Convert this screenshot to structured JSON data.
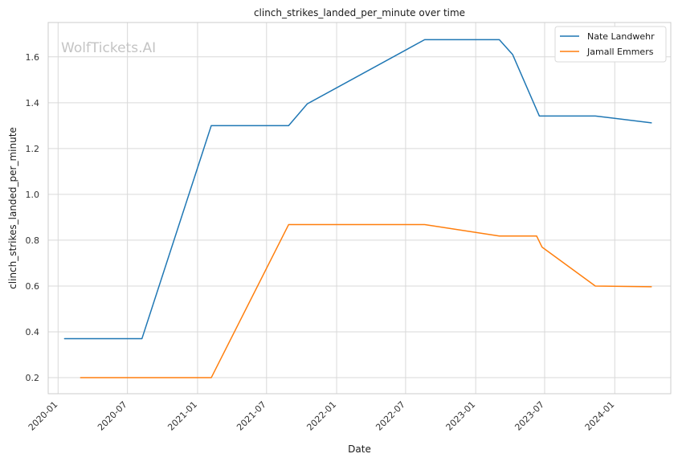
{
  "chart_data": {
    "type": "line",
    "title": "clinch_strikes_landed_per_minute over time",
    "xlabel": "Date",
    "ylabel": "clinch_strikes_landed_per_minute",
    "watermark": "WolfTickets.AI",
    "x_ticks": [
      "2020-01",
      "2020-07",
      "2021-01",
      "2021-07",
      "2022-01",
      "2022-07",
      "2023-01",
      "2023-07",
      "2024-01"
    ],
    "y_ticks": [
      0.2,
      0.4,
      0.6,
      0.8,
      1.0,
      1.2,
      1.4,
      1.6
    ],
    "ylim": [
      0.13,
      1.75
    ],
    "xlim": [
      "2019-12-06",
      "2024-05-27"
    ],
    "grid": true,
    "legend_position": "top-right",
    "series": [
      {
        "name": "Nate Landwehr",
        "color": "#1f77b4",
        "points": [
          {
            "x": "2020-01-18",
            "y": 0.37
          },
          {
            "x": "2020-08-08",
            "y": 0.37
          },
          {
            "x": "2021-02-06",
            "y": 1.3
          },
          {
            "x": "2021-08-28",
            "y": 1.3
          },
          {
            "x": "2021-10-16",
            "y": 1.395
          },
          {
            "x": "2022-08-20",
            "y": 1.675
          },
          {
            "x": "2023-03-04",
            "y": 1.675
          },
          {
            "x": "2023-04-08",
            "y": 1.61
          },
          {
            "x": "2023-06-17",
            "y": 1.342
          },
          {
            "x": "2023-11-11",
            "y": 1.342
          },
          {
            "x": "2024-04-06",
            "y": 1.312
          }
        ]
      },
      {
        "name": "Jamall Emmers",
        "color": "#ff7f0e",
        "points": [
          {
            "x": "2020-02-29",
            "y": 0.2
          },
          {
            "x": "2021-02-06",
            "y": 0.2
          },
          {
            "x": "2021-08-28",
            "y": 0.868
          },
          {
            "x": "2022-08-20",
            "y": 0.868
          },
          {
            "x": "2023-03-04",
            "y": 0.818
          },
          {
            "x": "2023-06-10",
            "y": 0.818
          },
          {
            "x": "2023-06-24",
            "y": 0.77
          },
          {
            "x": "2023-11-11",
            "y": 0.6
          },
          {
            "x": "2024-04-06",
            "y": 0.597
          }
        ]
      }
    ]
  }
}
